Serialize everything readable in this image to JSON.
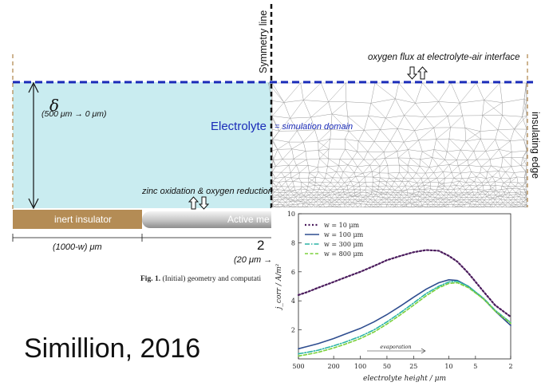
{
  "diagram": {
    "symmetry_line": "Symmetry line",
    "oxygen_flux": "oxygen flux at electrolyte-air interface",
    "delta_symbol": "δ",
    "delta_range": "(500 μm → 0 μm)",
    "electrolyte": "Electrolyte",
    "simulation_domain": "= simulation domain",
    "insulating_edge": "insulating edge",
    "zinc_reaction": "zinc oxidation & oxygen reduction",
    "inert_insulator": "inert insulator",
    "active_metal": "Active me",
    "width_left": "(1000-w) μm",
    "width_right_value": "2",
    "width_right_range": "(20 μm →",
    "caption_bold": "Fig. 1.",
    "caption_text": "(Initial) geometry and computati"
  },
  "credit": "Simillion, 2016",
  "colors": {
    "electrolyte_fill": "#c9ecf0",
    "interface_dash": "#1a2bb8",
    "insulator": "#b48c55",
    "w10": "#4a1b5c",
    "w100": "#2e4d8f",
    "w300": "#2bb4a6",
    "w800": "#7bd13c"
  },
  "chart_data": {
    "type": "line",
    "xlabel": "electrolyte height / μm",
    "ylabel": "j_corr / A/m²",
    "x_ticks": [
      "500",
      "200",
      "100",
      "50",
      "25",
      "10",
      "5",
      "2"
    ],
    "y_ticks": [
      "10",
      "8",
      "6",
      "4",
      "2"
    ],
    "y_min_label": "",
    "annotation": "evaporation",
    "legend_position": "top-left",
    "series": [
      {
        "name": "w = 10 μm",
        "style": "dotted",
        "x": [
          500,
          400,
          300,
          200,
          150,
          100,
          70,
          50,
          35,
          25,
          18,
          13,
          10,
          8,
          6,
          4,
          3,
          2
        ],
        "y": [
          4.4,
          4.6,
          4.9,
          5.3,
          5.6,
          6.0,
          6.4,
          6.8,
          7.1,
          7.35,
          7.5,
          7.45,
          7.1,
          6.7,
          5.9,
          4.6,
          3.7,
          2.9
        ]
      },
      {
        "name": "w = 100 μm",
        "style": "solid",
        "x": [
          500,
          400,
          300,
          200,
          150,
          100,
          70,
          50,
          35,
          25,
          18,
          13,
          10,
          8,
          6,
          4,
          3,
          2
        ],
        "y": [
          0.7,
          0.85,
          1.05,
          1.4,
          1.7,
          2.1,
          2.55,
          3.05,
          3.65,
          4.25,
          4.8,
          5.25,
          5.45,
          5.4,
          5.0,
          4.1,
          3.3,
          2.3
        ]
      },
      {
        "name": "w = 300 μm",
        "style": "dashdot",
        "x": [
          500,
          400,
          300,
          200,
          150,
          100,
          70,
          50,
          35,
          25,
          18,
          13,
          10,
          8,
          6,
          4,
          3,
          2
        ],
        "y": [
          0.35,
          0.45,
          0.6,
          0.9,
          1.15,
          1.55,
          2.0,
          2.55,
          3.2,
          3.85,
          4.5,
          5.0,
          5.3,
          5.35,
          5.0,
          4.15,
          3.35,
          2.5
        ]
      },
      {
        "name": "w = 800 μm",
        "style": "dashed",
        "x": [
          500,
          400,
          300,
          200,
          150,
          100,
          70,
          50,
          35,
          25,
          18,
          13,
          10,
          8,
          6,
          4,
          3,
          2
        ],
        "y": [
          0.2,
          0.3,
          0.45,
          0.75,
          1.0,
          1.4,
          1.85,
          2.4,
          3.05,
          3.7,
          4.35,
          4.9,
          5.2,
          5.25,
          4.9,
          4.1,
          3.3,
          2.45
        ]
      }
    ]
  }
}
